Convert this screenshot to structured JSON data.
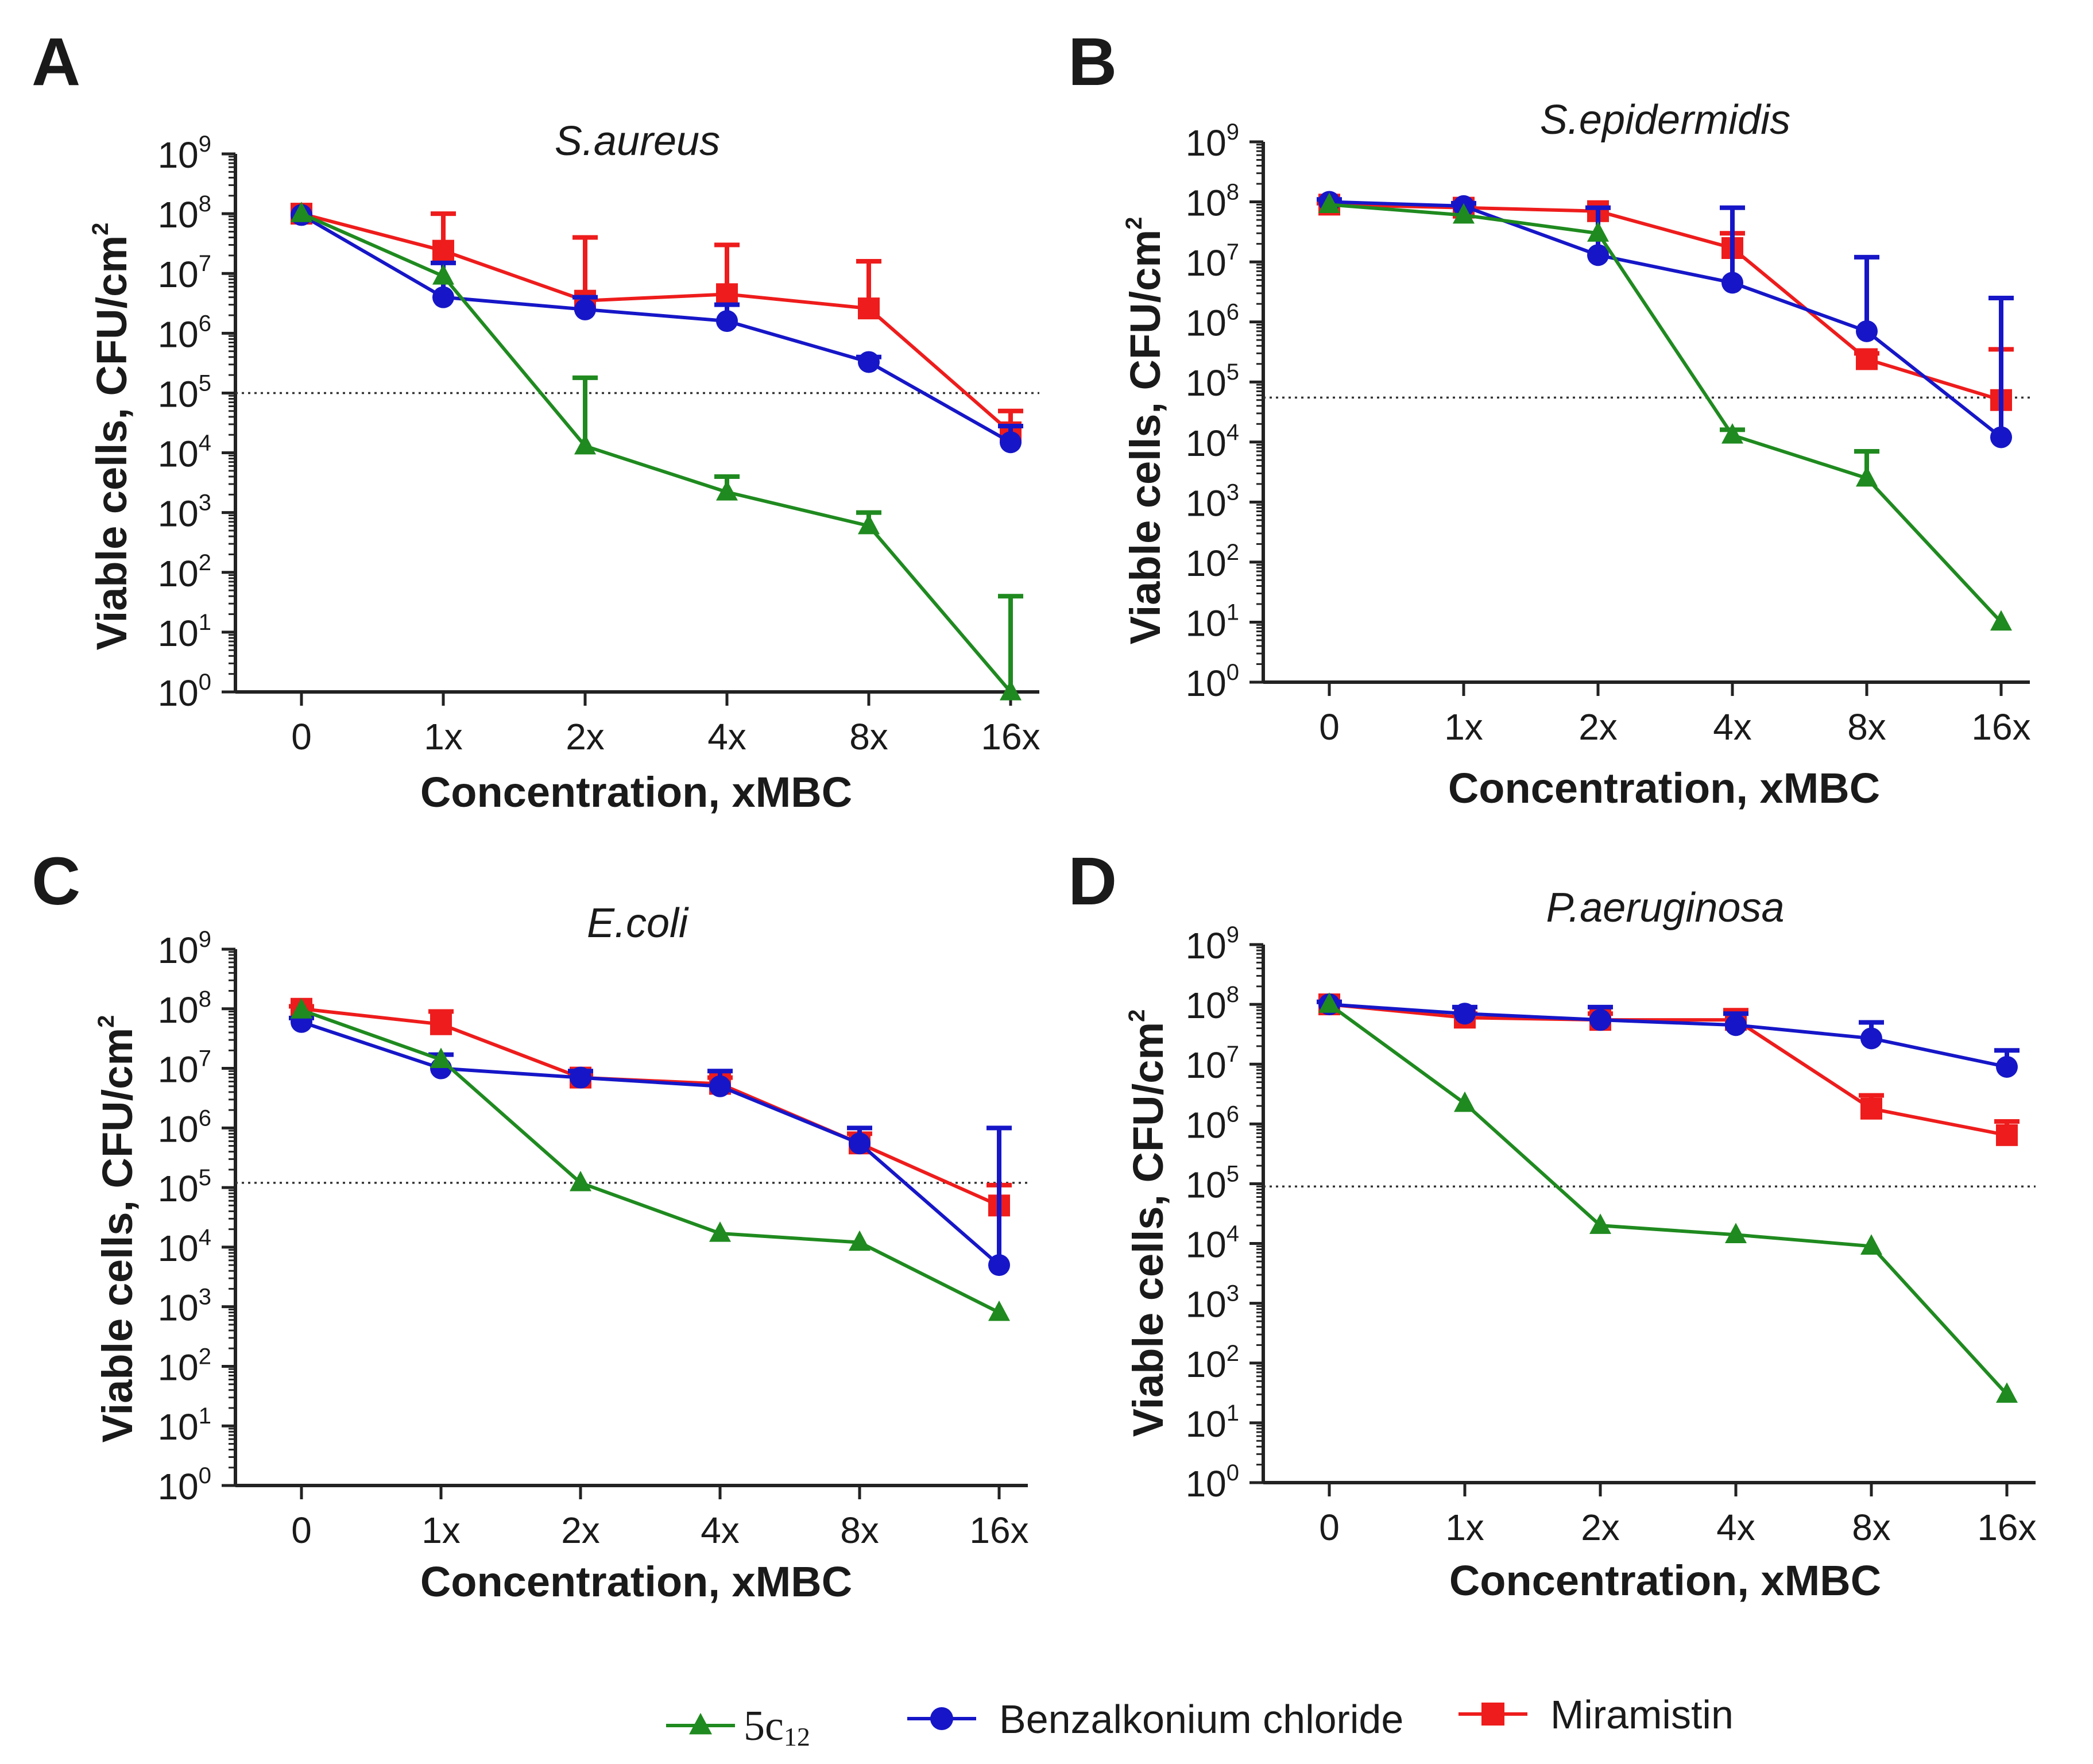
{
  "figure": {
    "legend": [
      {
        "name": "5c",
        "subscript": "12",
        "color": "#1f8a1f",
        "marker": "triangle"
      },
      {
        "name": "Benzalkonium chloride",
        "subscript": "",
        "color": "#1616c8",
        "marker": "circle"
      },
      {
        "name": "Miramistin",
        "subscript": "",
        "color": "#ee1c1c",
        "marker": "square"
      }
    ]
  },
  "chart_data": [
    {
      "panel": "A",
      "type": "line",
      "title": "S.aureus",
      "xlabel": "Concentration, xMBC",
      "ylabel": "Viable cells, CFU/cm",
      "ylabel_sup": "2",
      "yscale": "log",
      "ylim": [
        1,
        1000000000
      ],
      "yticks": [
        {
          "base": "10",
          "exp": "0"
        },
        {
          "base": "10",
          "exp": "1"
        },
        {
          "base": "10",
          "exp": "2"
        },
        {
          "base": "10",
          "exp": "3"
        },
        {
          "base": "10",
          "exp": "4"
        },
        {
          "base": "10",
          "exp": "5"
        },
        {
          "base": "10",
          "exp": "6"
        },
        {
          "base": "10",
          "exp": "7"
        },
        {
          "base": "10",
          "exp": "8"
        },
        {
          "base": "10",
          "exp": "9"
        }
      ],
      "categories": [
        "0",
        "1x",
        "2x",
        "4x",
        "8x",
        "16x"
      ],
      "threshold": 100000,
      "series": [
        {
          "name": "5c12",
          "values": [
            100000000,
            9000000,
            13000,
            2200,
            600,
            1
          ],
          "error_upper": [
            100000000,
            9000000,
            180000,
            4000,
            1000,
            40
          ]
        },
        {
          "name": "Benzalkonium chloride",
          "values": [
            95000000,
            4000000,
            2500000,
            1600000,
            330000,
            15000
          ],
          "error_upper": [
            95000000,
            15000000,
            4000000,
            3000000,
            400000,
            28000
          ]
        },
        {
          "name": "Miramistin",
          "values": [
            100000000,
            24000000,
            3500000,
            4500000,
            2600000,
            22000
          ],
          "error_upper": [
            100000000,
            100000000,
            40000000,
            30000000,
            16000000,
            50000
          ]
        }
      ]
    },
    {
      "panel": "B",
      "type": "line",
      "title": "S.epidermidis",
      "xlabel": "Concentration, xMBC",
      "ylabel": "Viable cells, CFU/cm",
      "ylabel_sup": "2",
      "yscale": "log",
      "ylim": [
        1,
        1000000000
      ],
      "yticks": [
        {
          "base": "10",
          "exp": "0"
        },
        {
          "base": "10",
          "exp": "1"
        },
        {
          "base": "10",
          "exp": "2"
        },
        {
          "base": "10",
          "exp": "3"
        },
        {
          "base": "10",
          "exp": "4"
        },
        {
          "base": "10",
          "exp": "5"
        },
        {
          "base": "10",
          "exp": "6"
        },
        {
          "base": "10",
          "exp": "7"
        },
        {
          "base": "10",
          "exp": "8"
        },
        {
          "base": "10",
          "exp": "9"
        }
      ],
      "categories": [
        "0",
        "1x",
        "2x",
        "4x",
        "8x",
        "16x"
      ],
      "threshold": 55000,
      "series": [
        {
          "name": "5c12",
          "values": [
            90000000,
            60000000,
            30000000,
            13000,
            2500,
            10
          ],
          "error_upper": [
            90000000,
            60000000,
            30000000,
            16000,
            7000,
            10
          ]
        },
        {
          "name": "Benzalkonium chloride",
          "values": [
            100000000,
            85000000,
            13000000,
            4500000,
            700000,
            12000
          ],
          "error_upper": [
            110000000,
            95000000,
            80000000,
            80000000,
            12000000,
            2500000
          ]
        },
        {
          "name": "Miramistin",
          "values": [
            90000000,
            80000000,
            70000000,
            17000000,
            240000,
            50000
          ],
          "error_upper": [
            95000000,
            90000000,
            80000000,
            30000000,
            300000,
            350000
          ]
        }
      ]
    },
    {
      "panel": "C",
      "type": "line",
      "title": "E.coli",
      "xlabel": "Concentration, xMBC",
      "ylabel": "Viable cells, CFU/cm",
      "ylabel_sup": "2",
      "yscale": "log",
      "ylim": [
        1,
        1000000000
      ],
      "yticks": [
        {
          "base": "10",
          "exp": "0"
        },
        {
          "base": "10",
          "exp": "1"
        },
        {
          "base": "10",
          "exp": "2"
        },
        {
          "base": "10",
          "exp": "3"
        },
        {
          "base": "10",
          "exp": "4"
        },
        {
          "base": "10",
          "exp": "5"
        },
        {
          "base": "10",
          "exp": "6"
        },
        {
          "base": "10",
          "exp": "7"
        },
        {
          "base": "10",
          "exp": "8"
        },
        {
          "base": "10",
          "exp": "9"
        }
      ],
      "categories": [
        "0",
        "1x",
        "2x",
        "4x",
        "8x",
        "16x"
      ],
      "threshold": 120000,
      "series": [
        {
          "name": "5c12",
          "values": [
            95000000,
            14000000,
            120000,
            17000,
            12000,
            800
          ],
          "error_upper": [
            95000000,
            14000000,
            120000,
            17000,
            12000,
            800
          ]
        },
        {
          "name": "Benzalkonium chloride",
          "values": [
            60000000,
            10000000,
            7000000,
            5000000,
            550000,
            5000
          ],
          "error_upper": [
            70000000,
            17000000,
            9000000,
            9000000,
            1000000,
            1000000
          ]
        },
        {
          "name": "Miramistin",
          "values": [
            100000000,
            55000000,
            7000000,
            5500000,
            550000,
            50000
          ],
          "error_upper": [
            110000000,
            90000000,
            8000000,
            7000000,
            800000,
            110000
          ]
        }
      ]
    },
    {
      "panel": "D",
      "type": "line",
      "title": "P.aeruginosa",
      "xlabel": "Concentration, xMBC",
      "ylabel": "Viable cells, CFU/cm",
      "ylabel_sup": "2",
      "yscale": "log",
      "ylim": [
        1,
        1000000000
      ],
      "yticks": [
        {
          "base": "10",
          "exp": "0"
        },
        {
          "base": "10",
          "exp": "1"
        },
        {
          "base": "10",
          "exp": "2"
        },
        {
          "base": "10",
          "exp": "3"
        },
        {
          "base": "10",
          "exp": "4"
        },
        {
          "base": "10",
          "exp": "5"
        },
        {
          "base": "10",
          "exp": "6"
        },
        {
          "base": "10",
          "exp": "7"
        },
        {
          "base": "10",
          "exp": "8"
        },
        {
          "base": "10",
          "exp": "9"
        }
      ],
      "categories": [
        "0",
        "1x",
        "2x",
        "4x",
        "8x",
        "16x"
      ],
      "threshold": 90000,
      "series": [
        {
          "name": "5c12",
          "values": [
            100000000,
            2200000,
            20000,
            14000,
            9000,
            30
          ],
          "error_upper": [
            100000000,
            2200000,
            20000,
            14000,
            9000,
            30
          ]
        },
        {
          "name": "Benzalkonium chloride",
          "values": [
            100000000,
            70000000,
            55000000,
            45000000,
            27000000,
            9000000
          ],
          "error_upper": [
            110000000,
            90000000,
            90000000,
            70000000,
            50000000,
            17000000
          ]
        },
        {
          "name": "Miramistin",
          "values": [
            100000000,
            60000000,
            55000000,
            55000000,
            1800000,
            650000
          ],
          "error_upper": [
            110000000,
            70000000,
            70000000,
            80000000,
            3000000,
            1100000
          ]
        }
      ]
    }
  ]
}
